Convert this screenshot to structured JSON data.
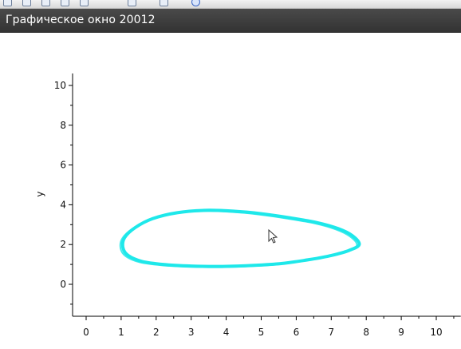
{
  "toolbar": {
    "icons": [
      "zoom-icon",
      "rotate-icon",
      "pan-icon",
      "datatip-icon",
      "select-icon",
      "edit-icon",
      "copy-icon",
      "help-icon"
    ]
  },
  "window": {
    "title": "Графическое окно 20012"
  },
  "chart_data": {
    "type": "line",
    "title": "",
    "xlabel": "",
    "ylabel": "y",
    "xlim": [
      -0.5,
      10.7
    ],
    "ylim": [
      -1.5,
      10.6
    ],
    "xticks": [
      0,
      1,
      2,
      3,
      4,
      5,
      6,
      7,
      8,
      9,
      10
    ],
    "yticks": [
      0,
      2,
      4,
      6,
      8,
      10
    ],
    "xtick_labels": [
      "0",
      "1",
      "2",
      "3",
      "4",
      "5",
      "6",
      "7",
      "8",
      "9",
      "10"
    ],
    "ytick_labels": [
      "0",
      "2",
      "4",
      "6",
      "8",
      "10"
    ],
    "series": [
      {
        "color": "#1ee8ea",
        "x": [
          7.8,
          7.6,
          7.2,
          6.6,
          5.8,
          5.0,
          4.2,
          3.4,
          2.6,
          1.9,
          1.4,
          1.1,
          1.05,
          1.2,
          1.6,
          2.2,
          3.0,
          3.9,
          4.8,
          5.6,
          6.4,
          7.0,
          7.5,
          7.8
        ],
        "y": [
          2.0,
          2.45,
          2.8,
          3.1,
          3.35,
          3.55,
          3.68,
          3.72,
          3.6,
          3.3,
          2.85,
          2.35,
          1.85,
          1.45,
          1.15,
          1.0,
          0.92,
          0.9,
          0.95,
          1.05,
          1.25,
          1.45,
          1.7,
          2.0
        ]
      }
    ]
  }
}
